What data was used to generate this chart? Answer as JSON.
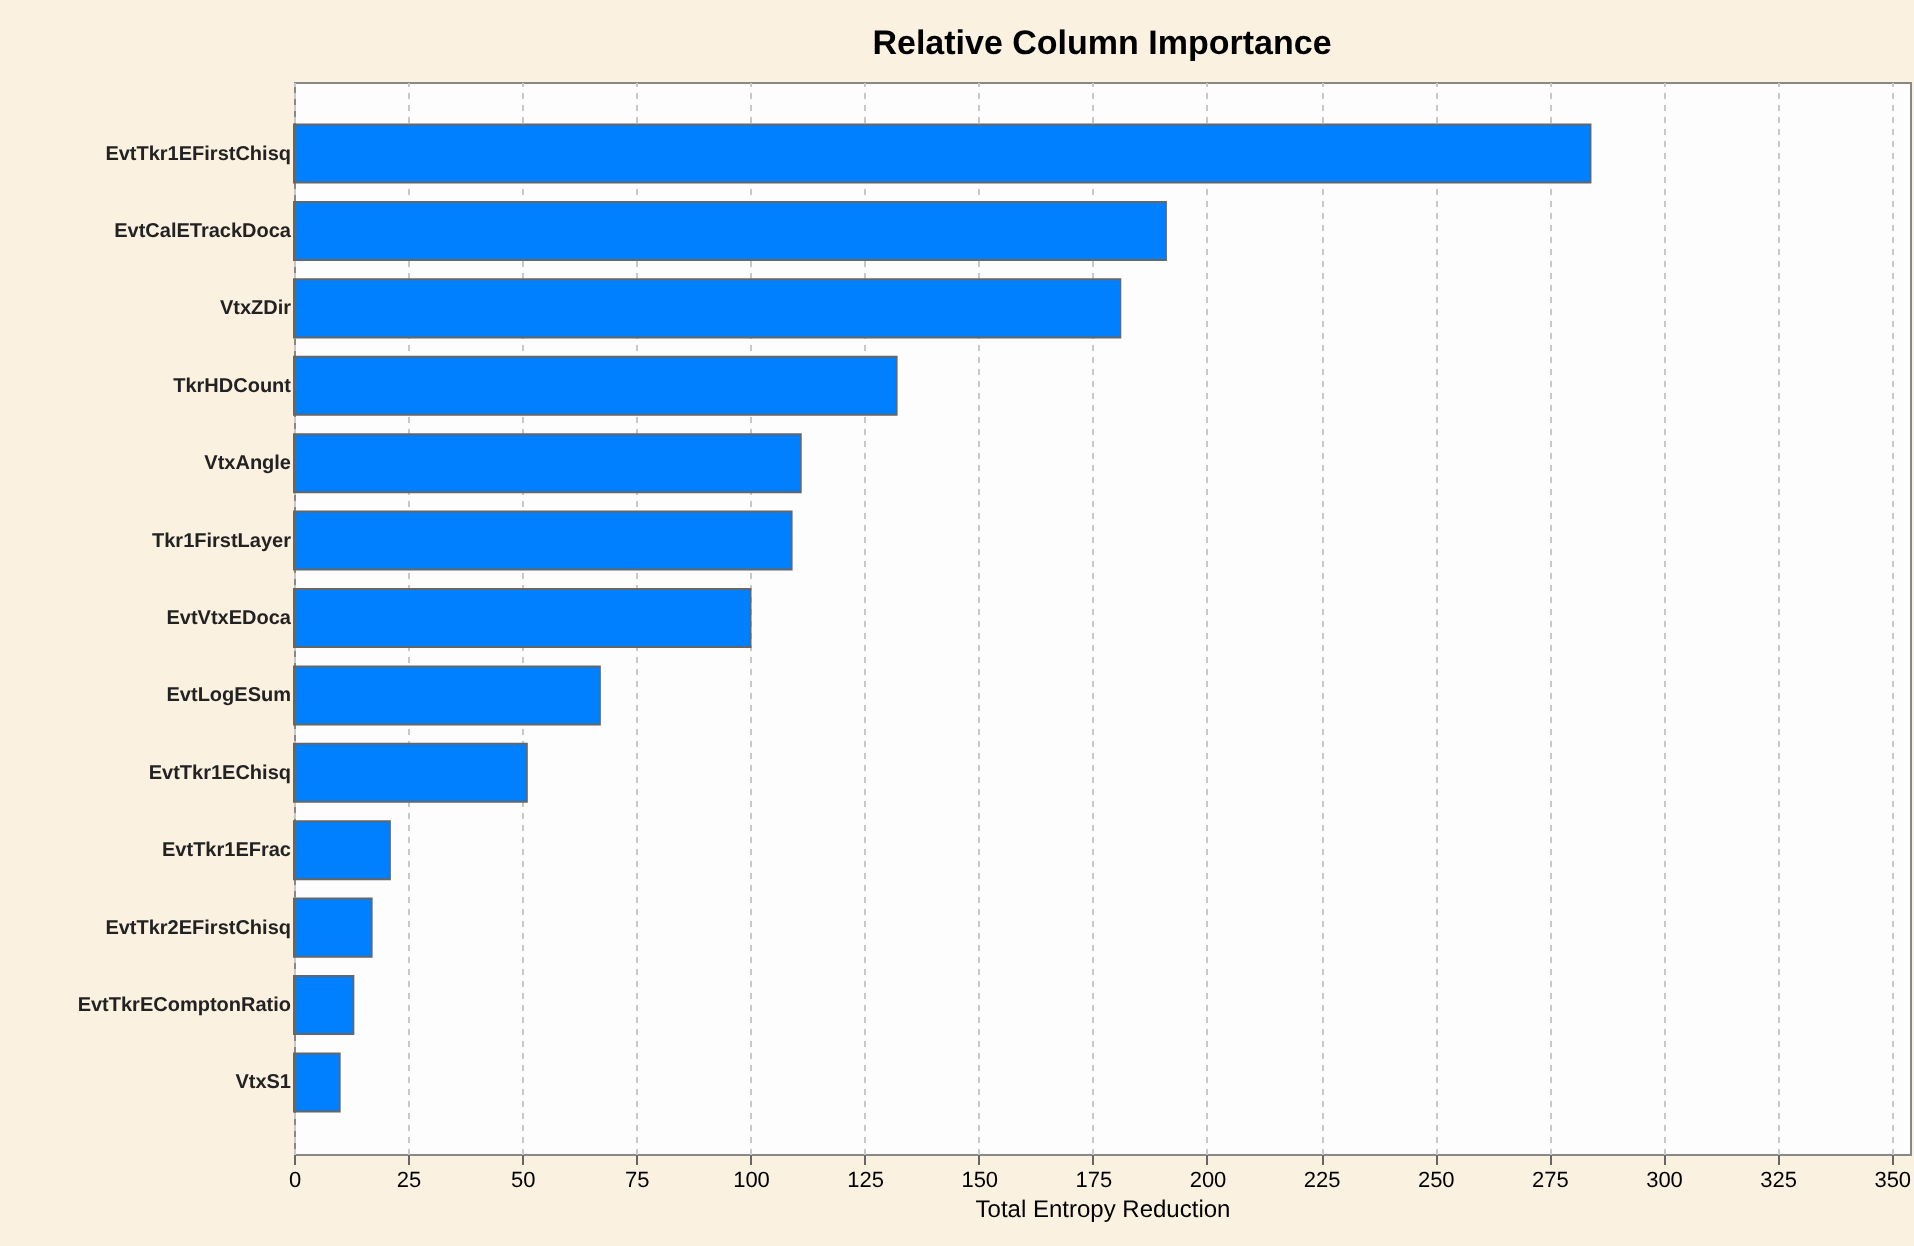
{
  "chart_data": {
    "type": "bar",
    "orientation": "horizontal",
    "title": "Relative Column Importance",
    "xlabel": "Total Entropy Reduction",
    "categories": [
      "EvtTkr1EFirstChisq",
      "EvtCalETrackDoca",
      "VtxZDir",
      "TkrHDCount",
      "VtxAngle",
      "Tkr1FirstLayer",
      "EvtVtxEDoca",
      "EvtLogESum",
      "EvtTkr1EChisq",
      "EvtTkr1EFrac",
      "EvtTkr2EFirstChisq",
      "EvtTkrEComptonRatio",
      "VtxS1"
    ],
    "values": [
      284,
      191,
      181,
      132,
      111,
      109,
      100,
      67,
      51,
      21,
      17,
      13,
      10
    ],
    "color": "#0080ff",
    "xlim": [
      0,
      354
    ],
    "xticks": [
      0,
      25,
      50,
      75,
      100,
      125,
      150,
      175,
      200,
      225,
      250,
      275,
      300,
      325,
      350
    ],
    "grid": "x"
  }
}
